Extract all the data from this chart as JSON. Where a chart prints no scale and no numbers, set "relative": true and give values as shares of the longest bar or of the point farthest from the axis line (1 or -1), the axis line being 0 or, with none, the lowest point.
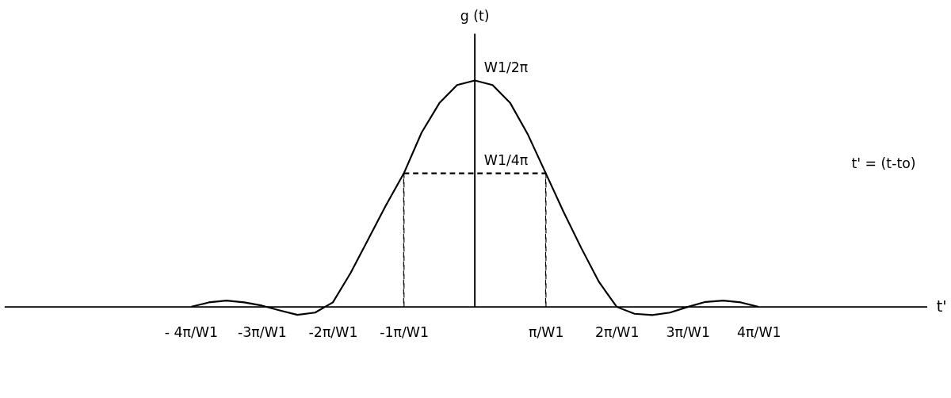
{
  "chart_data": {
    "type": "line",
    "relative": true,
    "xlabel": "t'",
    "ylabel": "g (t)",
    "categories": [
      null,
      null,
      null,
      null,
      null,
      "- 4π/W1",
      null,
      null,
      null,
      "-3π/W1",
      null,
      null,
      null,
      "-2π/W1",
      null,
      null,
      null,
      "-1π/W1",
      null,
      null,
      null,
      null,
      null,
      null,
      null,
      "π/W1",
      null,
      null,
      null,
      "2π/W1",
      null,
      null,
      null,
      "3π/W1",
      null,
      null,
      null,
      "4π/W1",
      null,
      null,
      null,
      null,
      null,
      null,
      null,
      null,
      null
    ],
    "marker": "none",
    "annotations": [
      "W1/2π",
      "W1/4π",
      "t' = (t-to)"
    ],
    "series": [
      {
        "color": "#000000",
        "line_style": "solid",
        "values": [
          null,
          null,
          null,
          null,
          null,
          0,
          0.02,
          0.028,
          0.02,
          0.006,
          -0.015,
          -0.035,
          -0.025,
          0.02,
          0.15,
          0.3,
          0.45,
          0.59,
          0.77,
          0.9,
          0.98,
          1,
          0.98,
          0.9,
          0.76,
          0.59,
          0.42,
          0.26,
          0.11,
          0,
          -0.03,
          -0.036,
          -0.025,
          0,
          0.022,
          0.028,
          0.02,
          0,
          null,
          null,
          null,
          null,
          null,
          null,
          null,
          null,
          null
        ]
      },
      {
        "color": "#000000",
        "line_style": "dashed",
        "values": [
          null,
          null,
          null,
          null,
          null,
          null,
          null,
          null,
          null,
          null,
          null,
          null,
          null,
          null,
          null,
          null,
          null,
          0.59,
          0.59,
          0.59,
          0.59,
          0.59,
          0.59,
          0.59,
          0.59,
          0.59,
          null,
          null,
          null,
          null,
          null,
          null,
          null,
          null,
          null,
          null,
          null,
          null,
          null,
          null,
          null,
          null,
          null,
          null,
          null,
          null,
          null
        ]
      },
      {
        "type": "bar",
        "color": "#000000",
        "line_style": "dashed",
        "values": [
          null,
          null,
          null,
          null,
          null,
          null,
          null,
          null,
          null,
          null,
          null,
          null,
          null,
          null,
          null,
          null,
          null,
          0.59,
          null,
          null,
          null,
          null,
          null,
          null,
          null,
          0.59,
          null,
          null,
          null,
          null,
          null,
          null,
          null,
          null,
          null,
          null,
          null,
          null,
          null,
          null,
          null,
          null,
          null,
          null,
          null,
          null,
          null
        ]
      }
    ]
  }
}
